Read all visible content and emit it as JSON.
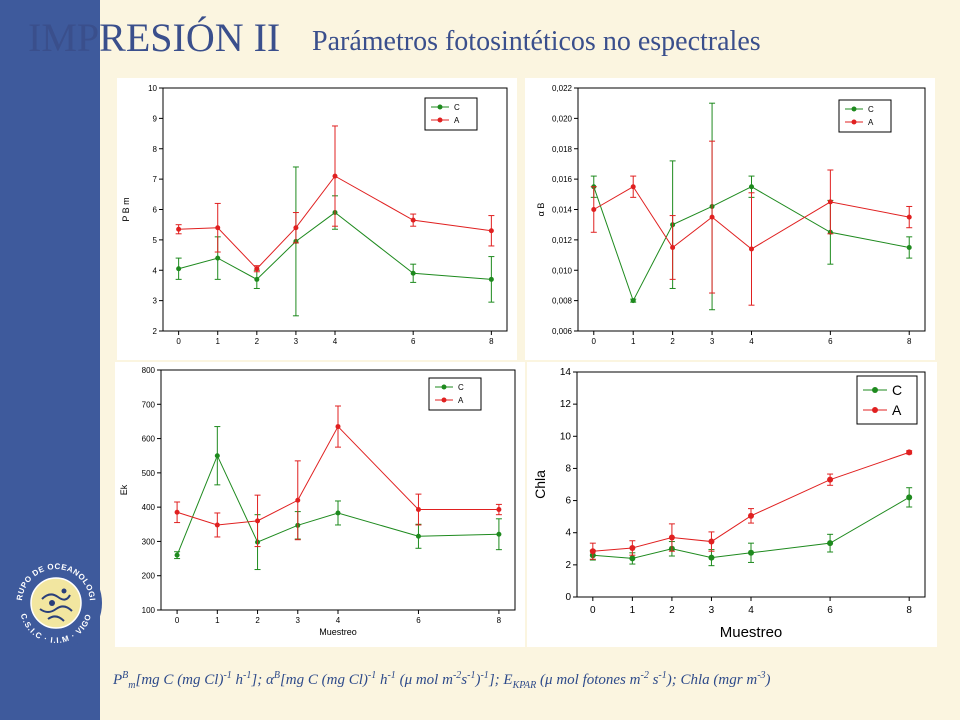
{
  "header": {
    "title": "IMPRESIÓN II",
    "subtitle": "Parámetros fotosintéticos no espectrales"
  },
  "logo": {
    "text_top": "GRUPO DE OCEANOLOGIA",
    "text_bottom": "C.S.I.C · I.I.M · VIGO"
  },
  "caption": {
    "p1": "P",
    "p1_sup": "B",
    "p1_sub": "m",
    "p2": "[mg C (mg Cl)",
    "p3": "-1",
    "p4": " h",
    "p5": "-1",
    "p6": "]; ",
    "p7": "α",
    "p8": "B",
    "p9": "[mg C (mg Cl)",
    "p10": "-1",
    "p11": " h",
    "p12": "-1",
    "p13": " (",
    "p14": "μ",
    "p15": " mol m",
    "p16": "-2",
    "p17": "s",
    "p18": "-1",
    "p19": ")",
    "p20": "-1",
    "p21": "]; E",
    "p22": "KPAR",
    "p23": " (",
    "p24": "μ",
    "p25": " mol fotones m",
    "p26": "-2",
    "p27": " s",
    "p28": "-1",
    "p29": "); Chla (mgr m",
    "p30": "-3",
    "p31": ")"
  },
  "colors": {
    "C": "#1e8a1e",
    "A": "#e02020"
  },
  "chart_data": [
    {
      "type": "line",
      "ylabel": "P B m",
      "xlabel": "",
      "ylim": [
        2,
        10
      ],
      "yticks": [
        "2",
        "3",
        "4",
        "5",
        "6",
        "7",
        "8",
        "9",
        "10"
      ],
      "xlim": [
        -0.4,
        8.4
      ],
      "xticks": [
        "0",
        "1",
        "2",
        "3",
        "4",
        "6",
        "8"
      ],
      "legend": "top-right",
      "series": [
        {
          "name": "C",
          "x": [
            0,
            1,
            2,
            3,
            4,
            6,
            8
          ],
          "y": [
            4.05,
            4.4,
            3.7,
            4.95,
            5.9,
            3.9,
            3.7
          ],
          "err": [
            0.35,
            0.7,
            0.3,
            2.45,
            0.55,
            0.3,
            0.75
          ]
        },
        {
          "name": "A",
          "x": [
            0,
            1,
            2,
            3,
            4,
            6,
            8
          ],
          "y": [
            5.35,
            5.4,
            4.05,
            5.4,
            7.1,
            5.65,
            5.3
          ],
          "err": [
            0.15,
            0.8,
            0.1,
            0.5,
            1.65,
            0.2,
            0.5
          ]
        }
      ]
    },
    {
      "type": "line",
      "ylabel": "α B",
      "xlabel": "",
      "ylim": [
        0.006,
        0.022
      ],
      "yticks": [
        "0,006",
        "0,008",
        "0,010",
        "0,012",
        "0,014",
        "0,016",
        "0,018",
        "0,020",
        "0,022"
      ],
      "xlim": [
        -0.4,
        8.4
      ],
      "xticks": [
        "0",
        "1",
        "2",
        "3",
        "4",
        "6",
        "8"
      ],
      "legend": "top-right",
      "series": [
        {
          "name": "C",
          "x": [
            0,
            1,
            2,
            3,
            4,
            6,
            8
          ],
          "y": [
            0.0155,
            0.008,
            0.013,
            0.0142,
            0.0155,
            0.0125,
            0.0115
          ],
          "err": [
            0.0007,
            0.0001,
            0.0042,
            0.0068,
            0.0007,
            0.0021,
            0.0007
          ]
        },
        {
          "name": "A",
          "x": [
            0,
            1,
            2,
            3,
            4,
            6,
            8
          ],
          "y": [
            0.014,
            0.0155,
            0.0115,
            0.0135,
            0.0114,
            0.0145,
            0.0135
          ],
          "err": [
            0.0015,
            0.0007,
            0.0021,
            0.005,
            0.0037,
            0.0021,
            0.0007
          ]
        }
      ]
    },
    {
      "type": "line",
      "ylabel": "Ek",
      "xlabel": "Muestreo",
      "ylim": [
        100,
        800
      ],
      "yticks": [
        "100",
        "200",
        "300",
        "400",
        "500",
        "600",
        "700",
        "800"
      ],
      "xlim": [
        -0.4,
        8.4
      ],
      "xticks": [
        "0",
        "1",
        "2",
        "3",
        "4",
        "6",
        "8"
      ],
      "legend": "top-right",
      "series": [
        {
          "name": "C",
          "x": [
            0,
            1,
            2,
            3,
            4,
            6,
            8
          ],
          "y": [
            260,
            550,
            298,
            347,
            383,
            315,
            321
          ],
          "err": [
            10,
            85,
            80,
            40,
            35,
            35,
            45
          ]
        },
        {
          "name": "A",
          "x": [
            0,
            1,
            2,
            3,
            4,
            6,
            8
          ],
          "y": [
            385,
            348,
            360,
            420,
            635,
            393,
            393
          ],
          "err": [
            30,
            35,
            75,
            115,
            60,
            45,
            15
          ]
        }
      ]
    },
    {
      "type": "line",
      "ylabel": "Chla",
      "xlabel": "Muestreo",
      "ylim": [
        0,
        14
      ],
      "yticks": [
        "0",
        "2",
        "4",
        "6",
        "8",
        "10",
        "12",
        "14"
      ],
      "xlim": [
        -0.4,
        8.4
      ],
      "xticks": [
        "0",
        "1",
        "2",
        "3",
        "4",
        "6",
        "8"
      ],
      "legend": "top-right",
      "series": [
        {
          "name": "C",
          "x": [
            0,
            1,
            2,
            3,
            4,
            6,
            8
          ],
          "y": [
            2.6,
            2.4,
            3.0,
            2.45,
            2.75,
            3.35,
            6.2
          ],
          "err": [
            0.3,
            0.35,
            0.45,
            0.5,
            0.6,
            0.55,
            0.6
          ]
        },
        {
          "name": "A",
          "x": [
            0,
            1,
            2,
            3,
            4,
            6,
            8
          ],
          "y": [
            2.85,
            3.05,
            3.7,
            3.45,
            5.05,
            7.3,
            9.0
          ],
          "err": [
            0.5,
            0.45,
            0.85,
            0.6,
            0.45,
            0.35,
            0.1
          ]
        }
      ]
    }
  ]
}
